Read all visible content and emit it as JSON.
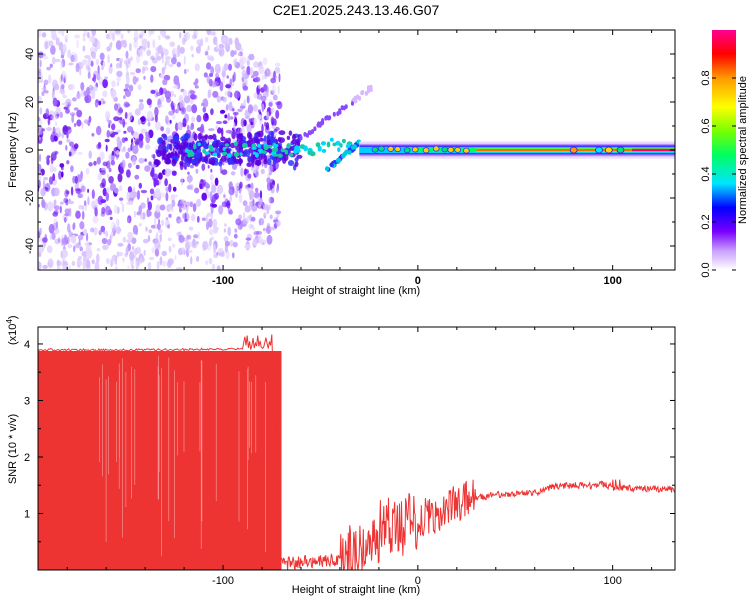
{
  "title": "C2E1.2025.243.13.46.G07",
  "chart_data": [
    {
      "type": "heatmap",
      "name": "spectrogram",
      "xlabel": "Height of straight line (km)",
      "ylabel": "Frequency (Hz)",
      "xlim": [
        -195,
        132
      ],
      "ylim": [
        -50,
        50
      ],
      "xticks": [
        -100,
        0,
        100
      ],
      "xtick_labels": [
        "-100",
        "0",
        "100"
      ],
      "yticks": [
        40,
        20,
        0,
        -20,
        -40
      ],
      "ytick_labels": [
        "40",
        "20",
        "0",
        "-20",
        "-40"
      ],
      "colorbar": {
        "label": "Normalized spectral amplitude",
        "range": [
          0,
          1
        ],
        "ticks": [
          0,
          0.2,
          0.4,
          0.6,
          0.8
        ],
        "tick_labels": [
          "0.0",
          "0.2",
          "0.4",
          "0.6",
          "0.8"
        ]
      },
      "features": {
        "noise_region_x": [
          -195,
          -75
        ],
        "main_line_freq_hz": 0,
        "branch_up": {
          "x": [
            -60,
            -22
          ],
          "y": [
            5,
            27
          ]
        },
        "branch_down": {
          "x": [
            -48,
            -30
          ],
          "y": [
            -9,
            3
          ]
        }
      }
    },
    {
      "type": "line",
      "name": "snr",
      "xlabel": "Height of straight line (km)",
      "ylabel": "SNR (10 * v/v)",
      "yscale_label": "(x10",
      "yscale_exp": "4",
      "yscale_close": ")",
      "xlim": [
        -195,
        132
      ],
      "ylim": [
        0,
        4.3
      ],
      "xticks": [
        -100,
        0,
        100
      ],
      "xtick_labels": [
        "-100",
        "0",
        "100"
      ],
      "yticks": [
        4,
        3,
        2,
        1
      ],
      "ytick_labels": [
        "4",
        "3",
        "2",
        "1"
      ],
      "color": "#ee3333",
      "series": {
        "x": [
          -195,
          -160,
          -120,
          -85,
          -75,
          -70,
          -65,
          -50,
          -40,
          -30,
          -20,
          -15,
          -10,
          0,
          10,
          20,
          30,
          40,
          50,
          60,
          65,
          70,
          80,
          90,
          95,
          100,
          110,
          120,
          132
        ],
        "y": [
          3.88,
          3.87,
          3.88,
          3.9,
          3.92,
          0.1,
          0.12,
          0.15,
          0.2,
          0.35,
          0.5,
          0.8,
          0.75,
          0.9,
          1.0,
          1.2,
          1.28,
          1.33,
          1.36,
          1.37,
          1.4,
          1.48,
          1.5,
          1.48,
          1.52,
          1.46,
          1.45,
          1.43,
          1.42
        ]
      }
    }
  ]
}
